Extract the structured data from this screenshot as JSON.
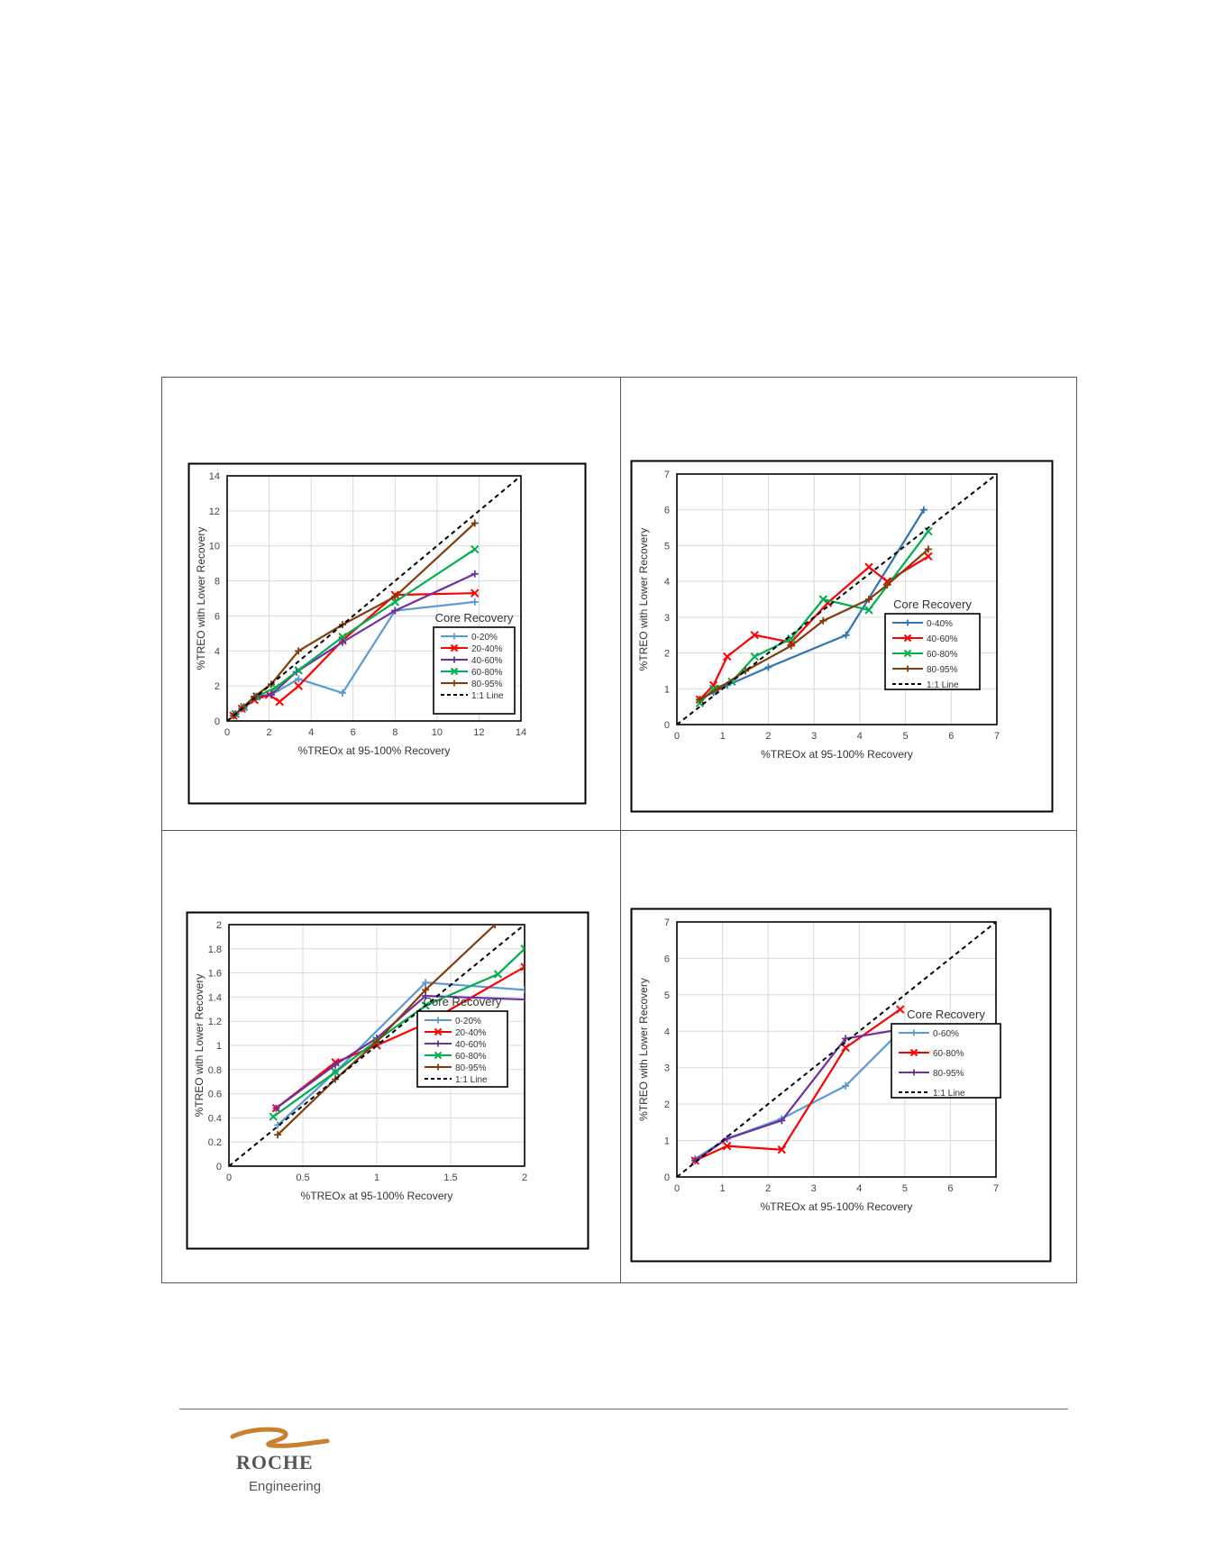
{
  "chart_data": [
    {
      "type": "line",
      "xlabel": "%TREOx at 95-100% Recovery",
      "ylabel": "%TREO with Lower Recovery",
      "xlim": [
        0,
        14
      ],
      "ylim": [
        0,
        14
      ],
      "xticks": [
        0,
        2,
        4,
        6,
        8,
        10,
        12,
        14
      ],
      "yticks": [
        0,
        2,
        4,
        6,
        8,
        10,
        12,
        14
      ],
      "legend_title": "Core Recovery",
      "legend_position": "bottom-right",
      "series": [
        {
          "name": "0-20%",
          "color": "#5b9bd5",
          "marker": "plus",
          "x": [
            0.4,
            0.8,
            1.5,
            2.1,
            3.4,
            5.5,
            8,
            11.8
          ],
          "y": [
            0.4,
            0.8,
            1.4,
            1.5,
            2.4,
            1.6,
            6.3,
            6.8
          ]
        },
        {
          "name": "20-40%",
          "color": "#ff0000",
          "marker": "x",
          "x": [
            0.3,
            0.7,
            1.3,
            2,
            2.5,
            3.4,
            5.5,
            8,
            11.8
          ],
          "y": [
            0.3,
            0.7,
            1.2,
            1.5,
            1.1,
            2,
            4.6,
            7.2,
            7.3
          ]
        },
        {
          "name": "40-60%",
          "color": "#7030a0",
          "marker": "plus",
          "x": [
            0.4,
            0.8,
            1.4,
            2.1,
            3.3,
            5.5,
            8,
            11.8
          ],
          "y": [
            0.4,
            0.8,
            1.4,
            1.5,
            2.8,
            4.5,
            6.3,
            8.4
          ]
        },
        {
          "name": "60-80%",
          "color": "#00b050",
          "marker": "x",
          "x": [
            0.4,
            0.8,
            1.4,
            2.3,
            3.4,
            5.5,
            8,
            11.8
          ],
          "y": [
            0.4,
            0.8,
            1.4,
            1.9,
            2.9,
            4.8,
            6.8,
            9.8
          ]
        },
        {
          "name": "80-95%",
          "color": "#843c0c",
          "marker": "plus",
          "x": [
            0.3,
            0.7,
            1.3,
            2.1,
            3.4,
            5.5,
            8,
            11.8
          ],
          "y": [
            0.3,
            0.7,
            1.4,
            2.1,
            4,
            5.5,
            7.1,
            11.3
          ]
        },
        {
          "name": "1:1 Line",
          "color": "#000000",
          "dashed": true,
          "x": [
            0,
            14
          ],
          "y": [
            0,
            14
          ]
        }
      ]
    },
    {
      "type": "line",
      "xlabel": "%TREOx at 95-100% Recovery",
      "ylabel": "%TREO with Lower Recovery",
      "xlim": [
        0,
        7
      ],
      "ylim": [
        0,
        7
      ],
      "xticks": [
        0,
        1,
        2,
        3,
        4,
        5,
        6,
        7
      ],
      "yticks": [
        0,
        1,
        2,
        3,
        4,
        5,
        6,
        7
      ],
      "legend_title": "Core Recovery",
      "legend_position": "bottom-right",
      "series": [
        {
          "name": "0-40%",
          "color": "#2e75b6",
          "marker": "plus",
          "x": [
            0.5,
            0.8,
            1.1,
            2,
            3.7,
            5.4
          ],
          "y": [
            0.7,
            0.9,
            1.1,
            1.6,
            2.5,
            6
          ]
        },
        {
          "name": "40-60%",
          "color": "#ff0000",
          "marker": "x",
          "x": [
            0.5,
            0.8,
            1.1,
            1.7,
            2.5,
            3.3,
            4.2,
            4.6,
            5.5
          ],
          "y": [
            0.7,
            1.1,
            1.9,
            2.5,
            2.3,
            3.4,
            4.4,
            4,
            4.7
          ]
        },
        {
          "name": "60-80%",
          "color": "#00b050",
          "marker": "x",
          "x": [
            0.5,
            0.8,
            1.2,
            1.7,
            2.5,
            3.2,
            4.2,
            5.5
          ],
          "y": [
            0.6,
            1,
            1.2,
            1.9,
            2.4,
            3.5,
            3.2,
            5.4
          ]
        },
        {
          "name": "80-95%",
          "color": "#843c0c",
          "marker": "plus",
          "x": [
            0.5,
            0.9,
            1.5,
            2.5,
            3.2,
            4.2,
            4.6,
            5.5
          ],
          "y": [
            0.7,
            1,
            1.5,
            2.2,
            2.9,
            3.5,
            3.9,
            4.9
          ]
        },
        {
          "name": "1:1 Line",
          "color": "#000000",
          "dashed": true,
          "x": [
            0,
            7
          ],
          "y": [
            0,
            7
          ]
        }
      ]
    },
    {
      "type": "line",
      "xlabel": "%TREOx at 95-100% Recovery",
      "ylabel": "%TREO with Lower Recovery",
      "xlim": [
        0,
        2
      ],
      "ylim": [
        0,
        2
      ],
      "xticks": [
        0,
        0.5,
        1,
        1.5,
        2
      ],
      "yticks": [
        0,
        0.2,
        0.4,
        0.6,
        0.8,
        1,
        1.2,
        1.4,
        1.6,
        1.8,
        2
      ],
      "legend_title": "Core Recovery",
      "legend_position": "bottom-right",
      "series": [
        {
          "name": "0-20%",
          "color": "#5b9bd5",
          "marker": "plus",
          "x": [
            0.33,
            0.72,
            1.33,
            2
          ],
          "y": [
            0.34,
            0.78,
            1.52,
            1.46
          ]
        },
        {
          "name": "20-40%",
          "color": "#ff0000",
          "marker": "x",
          "x": [
            0.32,
            0.72,
            1,
            1.33,
            2
          ],
          "y": [
            0.48,
            0.86,
            1,
            1.18,
            1.65
          ]
        },
        {
          "name": "40-60%",
          "color": "#7030a0",
          "marker": "plus",
          "x": [
            0.32,
            0.72,
            1,
            1.33,
            2
          ],
          "y": [
            0.48,
            0.84,
            1.06,
            1.41,
            1.38
          ]
        },
        {
          "name": "60-80%",
          "color": "#00b050",
          "marker": "x",
          "x": [
            0.3,
            0.72,
            1,
            1.33,
            1.82,
            2
          ],
          "y": [
            0.41,
            0.78,
            1.04,
            1.33,
            1.59,
            1.8
          ]
        },
        {
          "name": "80-95%",
          "color": "#843c0c",
          "marker": "plus",
          "x": [
            0.33,
            0.72,
            1,
            1.33,
            1.8
          ],
          "y": [
            0.26,
            0.72,
            1.03,
            1.46,
            2
          ]
        },
        {
          "name": "1:1 Line",
          "color": "#000000",
          "dashed": true,
          "x": [
            0,
            2
          ],
          "y": [
            0,
            2
          ]
        }
      ]
    },
    {
      "type": "line",
      "xlabel": "%TREOx at 95-100% Recovery",
      "ylabel": "%TREO with Lower Recovery",
      "xlim": [
        0,
        7
      ],
      "ylim": [
        0,
        7
      ],
      "xticks": [
        0,
        1,
        2,
        3,
        4,
        5,
        6,
        7
      ],
      "yticks": [
        0,
        1,
        2,
        3,
        4,
        5,
        6,
        7
      ],
      "legend_title": "Core Recovery",
      "legend_position": "bottom-right",
      "series": [
        {
          "name": "0-60%",
          "color": "#5b9bd5",
          "marker": "plus",
          "x": [
            0.4,
            1.1,
            2.3,
            3.7,
            4.9
          ],
          "y": [
            0.5,
            1.05,
            1.6,
            2.5,
            4
          ]
        },
        {
          "name": "60-80%",
          "color": "#ff0000",
          "marker": "x",
          "x": [
            0.4,
            1.1,
            2.3,
            3.7,
            4.9
          ],
          "y": [
            0.45,
            0.85,
            0.75,
            3.55,
            4.6
          ]
        },
        {
          "name": "80-95%",
          "color": "#7030a0",
          "marker": "plus",
          "x": [
            0.4,
            1.1,
            2.3,
            3.7,
            4.9
          ],
          "y": [
            0.45,
            1.05,
            1.55,
            3.8,
            4.05
          ]
        },
        {
          "name": "1:1 Line",
          "color": "#000000",
          "dashed": true,
          "x": [
            0,
            7
          ],
          "y": [
            0,
            7
          ]
        }
      ]
    }
  ],
  "footer": {
    "logo_name": "ROCHE",
    "logo_tagline": "Engineering",
    "logo_color": "#c9812f"
  }
}
